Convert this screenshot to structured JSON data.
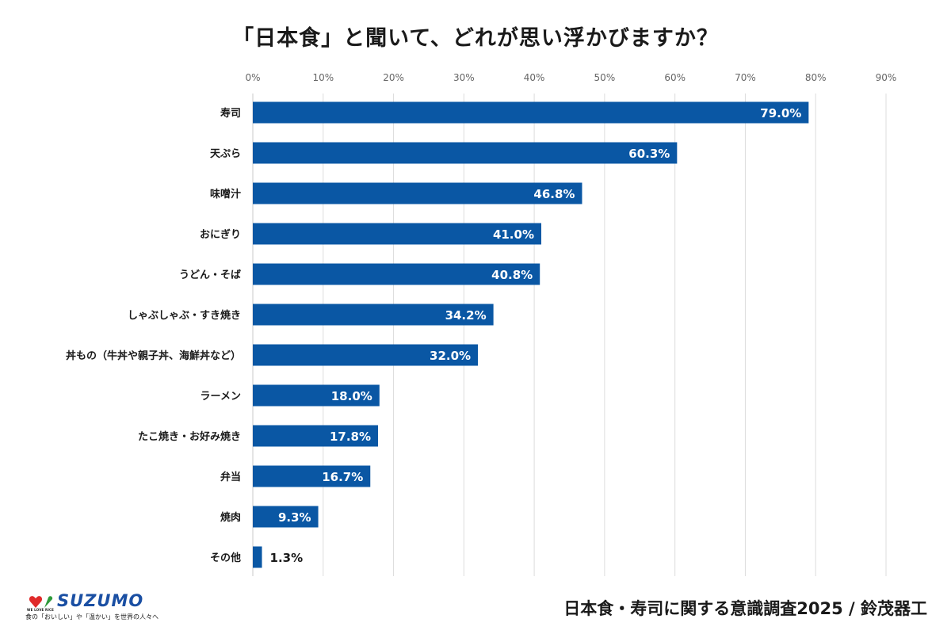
{
  "chart_data": {
    "type": "bar",
    "orientation": "horizontal",
    "title": "「日本食」と聞いて、どれが思い浮かびますか？",
    "categories": [
      "寿司",
      "天ぷら",
      "味噌汁",
      "おにぎり",
      "うどん・そば",
      "しゃぶしゃぶ・すき焼き",
      "丼もの（牛丼や親子丼、海鮮丼など）",
      "ラーメン",
      "たこ焼き・お好み焼き",
      "弁当",
      "焼肉",
      "その他"
    ],
    "values": [
      79.0,
      60.3,
      46.8,
      41.0,
      40.8,
      34.2,
      32.0,
      18.0,
      17.8,
      16.7,
      9.3,
      1.3
    ],
    "value_labels": [
      "79.0%",
      "60.3%",
      "46.8%",
      "41.0%",
      "40.8%",
      "34.2%",
      "32.0%",
      "18.0%",
      "17.8%",
      "16.7%",
      "9.3%",
      "1.3%"
    ],
    "xlim": [
      0,
      90
    ],
    "x_ticks": [
      "0%",
      "10%",
      "20%",
      "30%",
      "40%",
      "50%",
      "60%",
      "70%",
      "80%",
      "90%"
    ],
    "axis_position": "top",
    "grid": true,
    "legend": "none",
    "bar_color": "#0a57a4"
  },
  "footer": {
    "source": "日本食・寿司に関する意識調査2025 / 鈴茂器工"
  },
  "logo": {
    "name": "SUZUMO",
    "sub": "WE LOVE RICE",
    "tagline": "食の「おいしい」や「温かい」を世界の人々へ"
  }
}
